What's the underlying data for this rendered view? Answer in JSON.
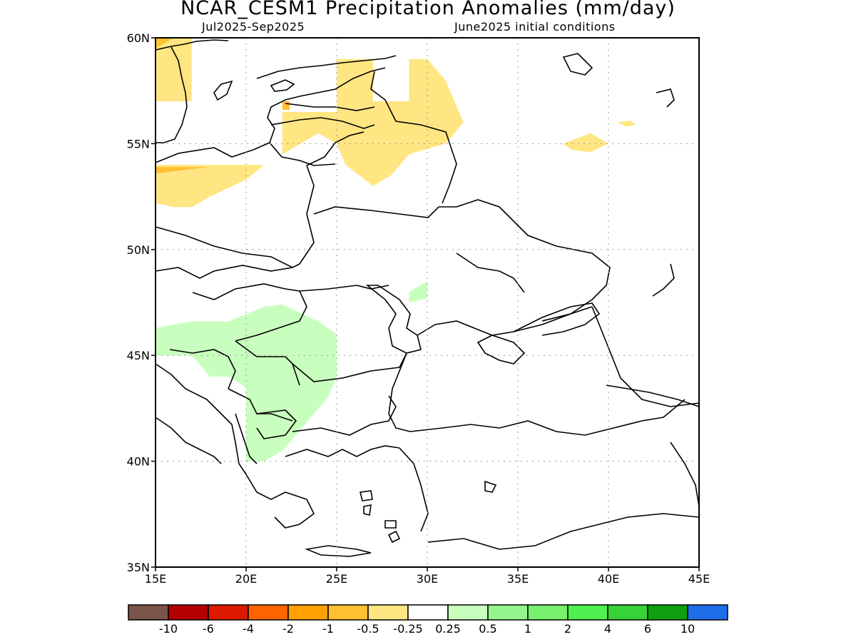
{
  "header": {
    "title": "NCAR_CESM1 Precipitation Anomalies (mm/day)",
    "period": "Jul2025-Sep2025",
    "initial_conditions": "June2025 initial conditions"
  },
  "map": {
    "lon_range": [
      15,
      45
    ],
    "lat_range": [
      35,
      60
    ],
    "lat_ticks": [
      {
        "value": 60,
        "label": "60N"
      },
      {
        "value": 55,
        "label": "55N"
      },
      {
        "value": 50,
        "label": "50N"
      },
      {
        "value": 45,
        "label": "45N"
      },
      {
        "value": 40,
        "label": "40N"
      },
      {
        "value": 35,
        "label": "35N"
      }
    ],
    "lon_ticks": [
      {
        "value": 15,
        "label": "15E"
      },
      {
        "value": 20,
        "label": "20E"
      },
      {
        "value": 25,
        "label": "25E"
      },
      {
        "value": 30,
        "label": "30E"
      },
      {
        "value": 35,
        "label": "35E"
      },
      {
        "value": 40,
        "label": "40E"
      },
      {
        "value": 45,
        "label": "45E"
      }
    ],
    "grid": true,
    "regions": [
      {
        "name": "dry-scandinavia",
        "category": "-0.5",
        "points": [
          [
            15,
            60
          ],
          [
            17,
            60
          ],
          [
            17,
            57
          ],
          [
            16,
            57
          ],
          [
            15,
            57
          ]
        ]
      },
      {
        "name": "dry-scandinavia-edge",
        "category": "-1",
        "points": [
          [
            15,
            60
          ],
          [
            16,
            60
          ],
          [
            15,
            59.5
          ]
        ]
      },
      {
        "name": "dry-baltic",
        "category": "-0.5",
        "points": [
          [
            22,
            56.5
          ],
          [
            25,
            56.5
          ],
          [
            25,
            59
          ],
          [
            27,
            59
          ],
          [
            27,
            57
          ],
          [
            29,
            57
          ],
          [
            29,
            59
          ],
          [
            30,
            59
          ],
          [
            31,
            58
          ],
          [
            32,
            56
          ],
          [
            31,
            55
          ],
          [
            29,
            54.5
          ],
          [
            28,
            53.5
          ],
          [
            27,
            53
          ],
          [
            25.5,
            54
          ],
          [
            25,
            55
          ],
          [
            24,
            55.5
          ],
          [
            23,
            55
          ],
          [
            22,
            54.5
          ]
        ]
      },
      {
        "name": "dry-baltic-edge",
        "category": "-1",
        "points": [
          [
            22,
            57
          ],
          [
            22.4,
            57
          ],
          [
            22.4,
            56.6
          ],
          [
            22,
            56.6
          ]
        ]
      },
      {
        "name": "dry-poland-north",
        "category": "-0.5",
        "points": [
          [
            15,
            54
          ],
          [
            21,
            54
          ],
          [
            20,
            53.3
          ],
          [
            18,
            52.5
          ],
          [
            17,
            52
          ],
          [
            16,
            52
          ],
          [
            15,
            52.2
          ]
        ]
      },
      {
        "name": "dry-poland-edge",
        "category": "-1",
        "points": [
          [
            15,
            53.9
          ],
          [
            18,
            53.9
          ],
          [
            15,
            53.6
          ]
        ]
      },
      {
        "name": "dry-russia-east",
        "category": "-0.5",
        "points": [
          [
            37.5,
            55
          ],
          [
            39,
            55.5
          ],
          [
            40,
            55
          ],
          [
            39,
            54.6
          ],
          [
            38,
            54.7
          ]
        ]
      },
      {
        "name": "dry-russia-east-small",
        "category": "-0.5",
        "points": [
          [
            40.5,
            56
          ],
          [
            41.2,
            56.1
          ],
          [
            41.5,
            55.9
          ],
          [
            41,
            55.8
          ]
        ]
      },
      {
        "name": "wet-balkans",
        "category": "0.25",
        "points": [
          [
            15,
            46.3
          ],
          [
            17,
            46.6
          ],
          [
            19,
            46.6
          ],
          [
            21,
            47.3
          ],
          [
            22,
            47.4
          ],
          [
            24,
            46.6
          ],
          [
            25,
            46
          ],
          [
            25,
            44
          ],
          [
            24.5,
            43
          ],
          [
            24,
            42.5
          ],
          [
            23,
            41.5
          ],
          [
            22.5,
            41
          ],
          [
            22,
            40.5
          ],
          [
            21,
            40
          ],
          [
            20,
            40
          ],
          [
            20,
            42
          ],
          [
            20,
            43.5
          ],
          [
            19,
            44
          ],
          [
            18,
            44
          ],
          [
            17,
            45
          ],
          [
            16,
            45
          ],
          [
            15,
            45
          ]
        ]
      },
      {
        "name": "wet-moldova",
        "category": "0.25",
        "points": [
          [
            29,
            48
          ],
          [
            30,
            48.5
          ],
          [
            30,
            47.7
          ],
          [
            29,
            47.5
          ]
        ]
      }
    ]
  },
  "colorbar": {
    "swatches": [
      {
        "color": "#7a5449"
      },
      {
        "color": "#b30000"
      },
      {
        "color": "#dd1a00"
      },
      {
        "color": "#ff6400"
      },
      {
        "color": "#ffa000"
      },
      {
        "color": "#ffc032"
      },
      {
        "color": "#ffe682"
      },
      {
        "color": "#ffffff"
      },
      {
        "color": "#c8ffbe"
      },
      {
        "color": "#96f58c"
      },
      {
        "color": "#78f06e"
      },
      {
        "color": "#50f050"
      },
      {
        "color": "#37d237"
      },
      {
        "color": "#0fa00f"
      },
      {
        "color": "#1e6eeb"
      }
    ],
    "labels": [
      "-10",
      "-6",
      "-4",
      "-2",
      "-1",
      "-0.5",
      "-0.25",
      "0.25",
      "0.5",
      "1",
      "2",
      "4",
      "6",
      "10"
    ]
  },
  "category_colors": {
    "-1": "#ffc032",
    "-0.5": "#ffe682",
    "0.25": "#c8ffbe"
  }
}
